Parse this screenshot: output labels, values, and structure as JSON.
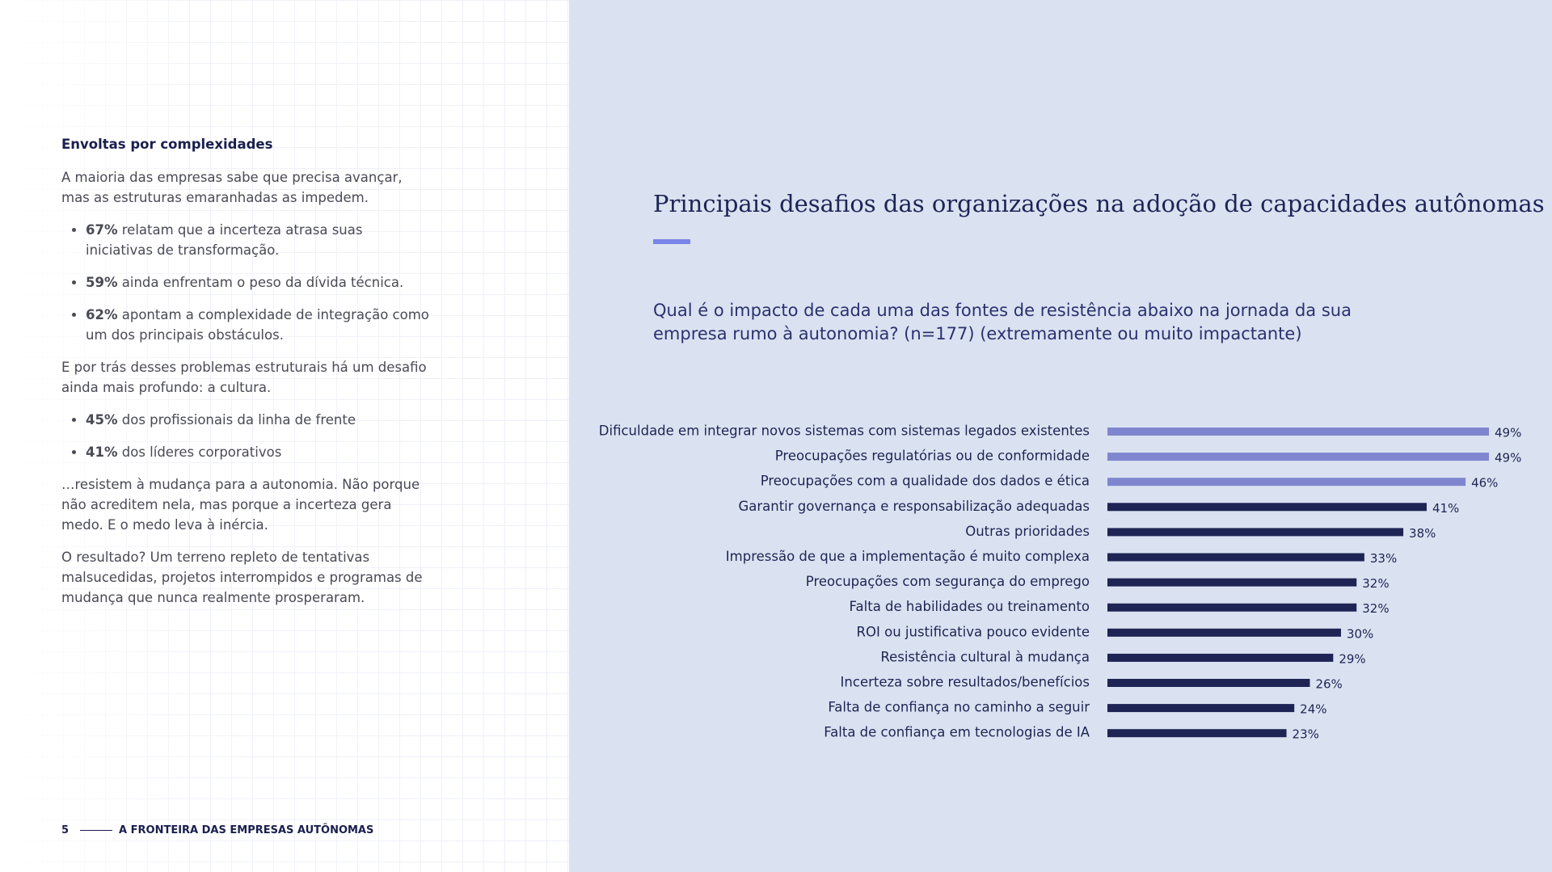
{
  "left": {
    "heading": "Envoltas por complexidades",
    "intro": "A maioria das empresas sabe que precisa avançar, mas as estruturas emaranhadas as impedem.",
    "bullets1": [
      {
        "bold": "67%",
        "text": "relatam que a incerteza atrasa suas iniciativas de transformação."
      },
      {
        "bold": "59%",
        "text": "ainda enfrentam o peso da dívida técnica."
      },
      {
        "bold": "62%",
        "text": "apontam a complexidade de integração como um dos principais obstáculos."
      }
    ],
    "middle": "E por trás desses problemas estruturais há um desafio ainda mais profundo: a cultura.",
    "bullets2": [
      {
        "bold": "45%",
        "text": "dos profissionais da linha de frente"
      },
      {
        "bold": "41%",
        "text": "dos líderes corporativos"
      }
    ],
    "after": "…resistem à mudança para a autonomia. Não porque não acreditem nela, mas porque a incerteza gera medo. E o medo leva à inércia.",
    "closing": "O resultado? Um terreno repleto de tentativas malsucedidas, projetos interrompidos e programas de mudança que nunca realmente prosperaram."
  },
  "footer": {
    "page": "5",
    "title": "A FRONTEIRA DAS EMPRESAS AUTÔNOMAS"
  },
  "chart_data": {
    "type": "hbar",
    "title": "Principais desafios das organizações na adoção de capacidades autônomas",
    "subtitle": "Qual é o impacto de cada uma das fontes de resistência abaixo na jornada da sua empresa rumo à autonomia? (n=177) (extremamente ou muito impactante)",
    "categories": [
      "Dificuldade em integrar novos sistemas com sistemas legados existentes",
      "Preocupações regulatórias ou de conformidade",
      "Preocupações com a qualidade dos dados e ética",
      "Garantir governança e responsabilização adequadas",
      "Outras prioridades",
      "Impressão de que a implementação é muito complexa",
      "Preocupações com segurança do emprego",
      "Falta de habilidades ou treinamento",
      "ROI ou justificativa pouco evidente",
      "Resistência cultural à mudança",
      "Incerteza sobre resultados/benefícios",
      "Falta de confiança no caminho a seguir",
      "Falta de confiança em tecnologias de IA"
    ],
    "values": [
      49,
      49,
      46,
      41,
      38,
      33,
      32,
      32,
      30,
      29,
      26,
      24,
      23
    ],
    "value_labels": [
      "49%",
      "49%",
      "46%",
      "41%",
      "38%",
      "33%",
      "32%",
      "32%",
      "30%",
      "29%",
      "26%",
      "24%",
      "23%"
    ],
    "colors": [
      "#7f86cf",
      "#7f86cf",
      "#7f86cf",
      "#1e2454",
      "#1e2454",
      "#1e2454",
      "#1e2454",
      "#1e2454",
      "#1e2454",
      "#1e2454",
      "#1e2454",
      "#1e2454",
      "#1e2454"
    ]
  }
}
